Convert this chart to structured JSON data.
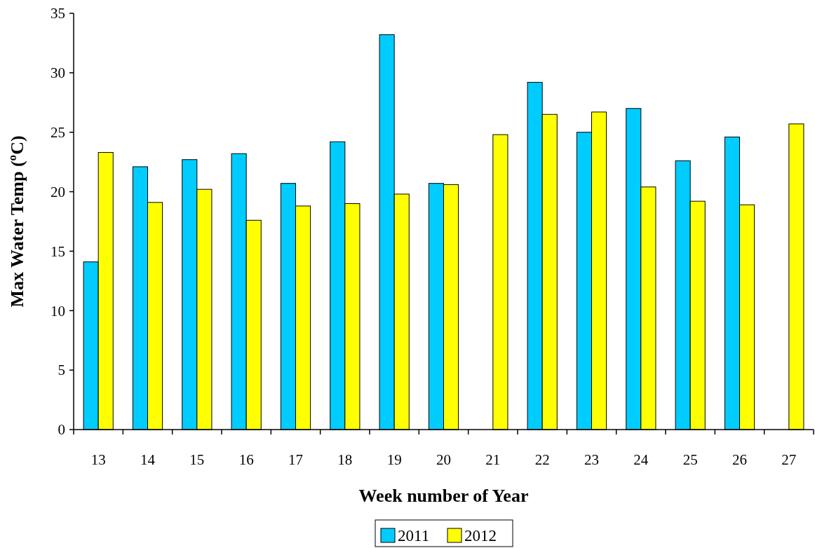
{
  "chart_data": {
    "type": "bar",
    "xlabel": "Week number of Year",
    "ylabel": "Max Water Temp (ºC)",
    "categories": [
      "13",
      "14",
      "15",
      "16",
      "17",
      "18",
      "19",
      "20",
      "21",
      "22",
      "23",
      "24",
      "25",
      "26",
      "27"
    ],
    "series": [
      {
        "name": "2011",
        "color": "#00ccff",
        "values": [
          14.1,
          22.1,
          22.7,
          23.2,
          20.7,
          24.2,
          33.2,
          20.7,
          null,
          29.2,
          25.0,
          27.0,
          22.6,
          24.6,
          null
        ]
      },
      {
        "name": "2012",
        "color": "#ffff00",
        "values": [
          23.3,
          19.1,
          20.2,
          17.6,
          18.8,
          19.0,
          19.8,
          20.6,
          24.8,
          26.5,
          26.7,
          20.4,
          19.2,
          18.9,
          25.7
        ]
      }
    ],
    "ylim": [
      0,
      35
    ],
    "yticks": [
      0,
      5,
      10,
      15,
      20,
      25,
      30,
      35
    ],
    "grid": false,
    "legend": "bottom"
  }
}
